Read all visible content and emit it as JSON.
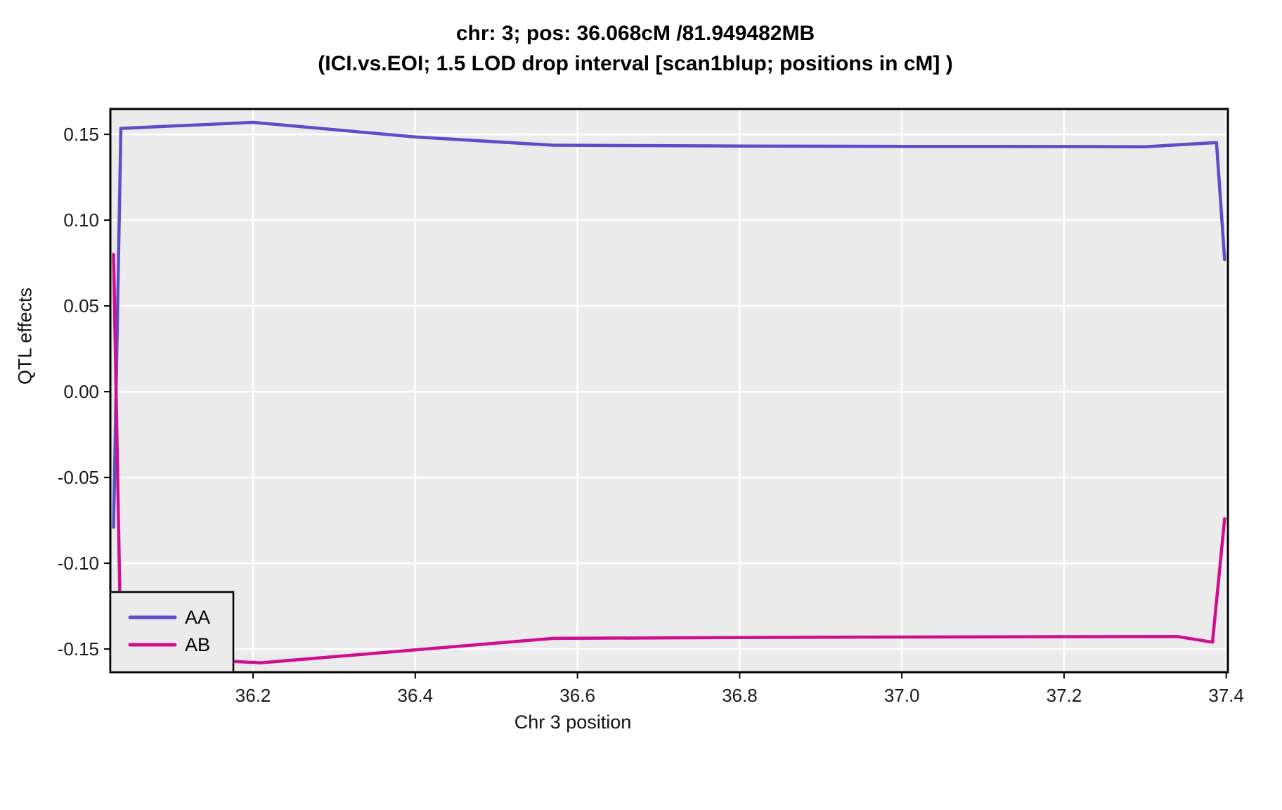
{
  "title": {
    "line1": "chr: 3; pos: 36.068cM /81.949482MB",
    "line2": "(ICI.vs.EOI; 1.5 LOD drop interval [scan1blup; positions in cM] )"
  },
  "colors": {
    "panel_background": "#EBEBEB",
    "gridline": "#FFFFFF",
    "panel_border": "#000000",
    "tick_text": "#1a1a1a",
    "aa_line": "#5B4EC8",
    "ab_line": "#CE1090"
  },
  "chart_data": {
    "type": "line",
    "title": "chr: 3; pos: 36.068cM /81.949482MB",
    "subtitle": "(ICI.vs.EOI; 1.5 LOD drop interval [scan1blup; positions in cM] )",
    "xlabel": "Chr 3 position",
    "ylabel": "QTL effects",
    "xlim": [
      36.024,
      37.402
    ],
    "ylim": [
      -0.1635,
      0.1648
    ],
    "grid": true,
    "legend_position": "bottom-left",
    "x_ticks": [
      {
        "v": 36.2,
        "label": "36.2"
      },
      {
        "v": 36.4,
        "label": "36.4"
      },
      {
        "v": 36.6,
        "label": "36.6"
      },
      {
        "v": 36.8,
        "label": "36.8"
      },
      {
        "v": 37.0,
        "label": "37.0"
      },
      {
        "v": 37.2,
        "label": "37.2"
      },
      {
        "v": 37.4,
        "label": "37.4"
      }
    ],
    "y_ticks": [
      {
        "v": 0.15,
        "label": "0.15"
      },
      {
        "v": 0.1,
        "label": "0.10"
      },
      {
        "v": 0.05,
        "label": "0.05"
      },
      {
        "v": 0.0,
        "label": "0.00"
      },
      {
        "v": -0.05,
        "label": "-0.05"
      },
      {
        "v": -0.1,
        "label": "-0.10"
      },
      {
        "v": -0.15,
        "label": "-0.15"
      }
    ],
    "series": [
      {
        "name": "AA",
        "color": "#5B4EC8",
        "points": [
          [
            36.028,
            -0.079
          ],
          [
            36.037,
            0.1535
          ],
          [
            36.2,
            0.157
          ],
          [
            36.4,
            0.1485
          ],
          [
            36.57,
            0.1437
          ],
          [
            36.8,
            0.1432
          ],
          [
            37.0,
            0.143
          ],
          [
            37.2,
            0.1429
          ],
          [
            37.3,
            0.1428
          ],
          [
            37.388,
            0.1452
          ],
          [
            37.398,
            0.077
          ]
        ]
      },
      {
        "name": "AB",
        "color": "#CE1090",
        "points": [
          [
            36.028,
            0.08
          ],
          [
            36.037,
            -0.152
          ],
          [
            36.1,
            -0.1555
          ],
          [
            36.21,
            -0.158
          ],
          [
            36.4,
            -0.1505
          ],
          [
            36.57,
            -0.1438
          ],
          [
            36.8,
            -0.1433
          ],
          [
            37.0,
            -0.143
          ],
          [
            37.2,
            -0.1428
          ],
          [
            37.34,
            -0.1427
          ],
          [
            37.383,
            -0.146
          ],
          [
            37.398,
            -0.074
          ]
        ]
      }
    ],
    "legend": [
      {
        "label": "AA",
        "color": "#5B4EC8"
      },
      {
        "label": "AB",
        "color": "#CE1090"
      }
    ]
  }
}
